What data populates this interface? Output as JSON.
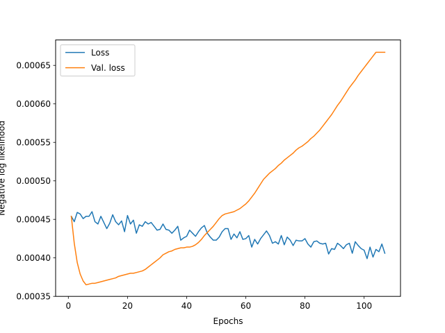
{
  "chart_data": {
    "type": "line",
    "xlabel": "Epochs",
    "ylabel": "Negative log likelihood",
    "xlim": [
      -4.3,
      112.3
    ],
    "ylim": [
      0.00035,
      0.000683
    ],
    "xticks": [
      0,
      20,
      40,
      60,
      80,
      100
    ],
    "xtick_labels": [
      "0",
      "20",
      "40",
      "60",
      "80",
      "100"
    ],
    "yticks": [
      0.00035,
      0.0004,
      0.00045,
      0.0005,
      0.00055,
      0.0006,
      0.00065
    ],
    "ytick_labels": [
      "0.00035",
      "0.00040",
      "0.00045",
      "0.00050",
      "0.00055",
      "0.00060",
      "0.00065"
    ],
    "grid": false,
    "legend_position": "top-left",
    "x": [
      1,
      2,
      3,
      4,
      5,
      6,
      7,
      8,
      9,
      10,
      11,
      12,
      13,
      14,
      15,
      16,
      17,
      18,
      19,
      20,
      21,
      22,
      23,
      24,
      25,
      26,
      27,
      28,
      29,
      30,
      31,
      32,
      33,
      34,
      35,
      36,
      37,
      38,
      39,
      40,
      41,
      42,
      43,
      44,
      45,
      46,
      47,
      48,
      49,
      50,
      51,
      52,
      53,
      54,
      55,
      56,
      57,
      58,
      59,
      60,
      61,
      62,
      63,
      64,
      65,
      66,
      67,
      68,
      69,
      70,
      71,
      72,
      73,
      74,
      75,
      76,
      77,
      78,
      79,
      80,
      81,
      82,
      83,
      84,
      85,
      86,
      87,
      88,
      89,
      90,
      91,
      92,
      93,
      94,
      95,
      96,
      97,
      98,
      99,
      100,
      101,
      102,
      103,
      104,
      105,
      106,
      107
    ],
    "series": [
      {
        "name": "Loss",
        "color": "#1f77b4",
        "values": [
          0.000454,
          0.000447,
          0.000459,
          0.000457,
          0.000451,
          0.000454,
          0.000454,
          0.00046,
          0.000447,
          0.000444,
          0.000454,
          0.000446,
          0.000438,
          0.000445,
          0.000456,
          0.000447,
          0.000443,
          0.000448,
          0.000434,
          0.000455,
          0.000444,
          0.000449,
          0.000432,
          0.000443,
          0.000441,
          0.000447,
          0.000444,
          0.000446,
          0.000441,
          0.000436,
          0.000437,
          0.000444,
          0.000437,
          0.000436,
          0.000432,
          0.000436,
          0.000441,
          0.000423,
          0.000426,
          0.000428,
          0.000436,
          0.000432,
          0.000428,
          0.000434,
          0.000439,
          0.000442,
          0.000432,
          0.000427,
          0.000423,
          0.000423,
          0.000427,
          0.000434,
          0.000438,
          0.000438,
          0.000424,
          0.000431,
          0.000426,
          0.000434,
          0.000424,
          0.000425,
          0.000429,
          0.000414,
          0.000424,
          0.000418,
          0.000425,
          0.00043,
          0.000435,
          0.000429,
          0.000419,
          0.000421,
          0.000418,
          0.000429,
          0.000417,
          0.000427,
          0.000423,
          0.000416,
          0.000423,
          0.000422,
          0.000422,
          0.000425,
          0.000418,
          0.000414,
          0.000421,
          0.000422,
          0.000419,
          0.000418,
          0.000419,
          0.000405,
          0.000412,
          0.000411,
          0.000419,
          0.000416,
          0.000412,
          0.000417,
          0.000419,
          0.000406,
          0.000421,
          0.000416,
          0.000412,
          0.00041,
          0.000399,
          0.000414,
          0.000401,
          0.000411,
          0.000408,
          0.000418,
          0.000406
        ]
      },
      {
        "name": "Val. loss",
        "color": "#ff7f0e",
        "values": [
          0.000454,
          0.000419,
          0.000394,
          0.000379,
          0.00037,
          0.000365,
          0.000366,
          0.000367,
          0.000367,
          0.000368,
          0.000369,
          0.00037,
          0.000371,
          0.000372,
          0.000373,
          0.000374,
          0.000376,
          0.000377,
          0.000378,
          0.000379,
          0.00038,
          0.00038,
          0.000381,
          0.000382,
          0.000383,
          0.000385,
          0.000388,
          0.000391,
          0.000394,
          0.000397,
          0.0004,
          0.000404,
          0.000406,
          0.000408,
          0.000409,
          0.000411,
          0.000412,
          0.000413,
          0.000413,
          0.000414,
          0.000414,
          0.000415,
          0.000417,
          0.00042,
          0.000424,
          0.000429,
          0.000433,
          0.000437,
          0.000441,
          0.000446,
          0.000451,
          0.000455,
          0.000457,
          0.000458,
          0.000459,
          0.00046,
          0.000462,
          0.000464,
          0.000467,
          0.00047,
          0.000474,
          0.000479,
          0.000484,
          0.00049,
          0.000496,
          0.000502,
          0.000506,
          0.00051,
          0.000513,
          0.000516,
          0.00052,
          0.000523,
          0.000527,
          0.00053,
          0.000533,
          0.000536,
          0.00054,
          0.000543,
          0.000545,
          0.000548,
          0.000551,
          0.000555,
          0.000558,
          0.000562,
          0.000566,
          0.000571,
          0.000576,
          0.000581,
          0.000586,
          0.000592,
          0.000598,
          0.000603,
          0.000609,
          0.000615,
          0.000621,
          0.000626,
          0.000631,
          0.000637,
          0.000642,
          0.000647,
          0.000652,
          0.000657,
          0.000662,
          0.000667,
          0.000667,
          0.000667,
          0.000667
        ]
      }
    ]
  }
}
